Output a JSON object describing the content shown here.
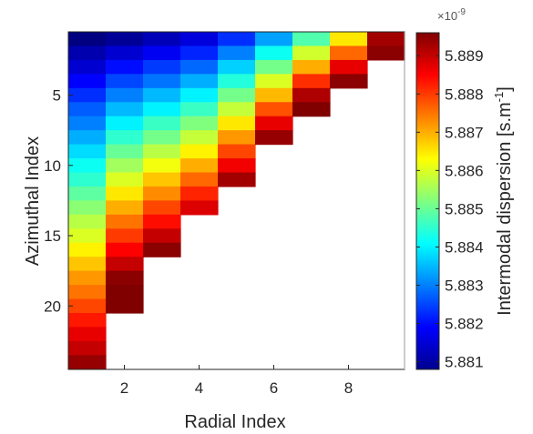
{
  "chart_data": {
    "type": "heatmap",
    "title": "",
    "xlabel": "Radial Index",
    "ylabel": "Azimuthal Index",
    "x_range": [
      1,
      9
    ],
    "y_range": [
      1,
      24
    ],
    "y_direction": "reversed",
    "x_ticks": [
      "2",
      "4",
      "6",
      "8"
    ],
    "y_ticks": [
      "5",
      "10",
      "15",
      "20"
    ],
    "colorbar": {
      "label_main": "Intermodal dispersion [s.m",
      "label_sup": "-1",
      "label_end": "]",
      "multiplier": "×10",
      "multiplier_exp": "-9",
      "ticks": [
        "5.881",
        "5.882",
        "5.883",
        "5.884",
        "5.885",
        "5.886",
        "5.887",
        "5.888",
        "5.889"
      ],
      "min": 5.8808,
      "max": 5.8896,
      "colormap": "jet"
    },
    "columns": [
      {
        "radial_index": 1,
        "values": [
          5.8808,
          5.8812,
          5.8815,
          5.8819,
          5.8823,
          5.8827,
          5.883,
          5.8834,
          5.8838,
          5.8842,
          5.8845,
          5.8849,
          5.8853,
          5.8857,
          5.886,
          5.8864,
          5.8868,
          5.8872,
          5.8875,
          5.8879,
          5.8883,
          5.8887,
          5.889,
          5.8894
        ]
      },
      {
        "radial_index": 2,
        "values": [
          5.881,
          5.8815,
          5.882,
          5.8825,
          5.883,
          5.8835,
          5.884,
          5.8845,
          5.885,
          5.8855,
          5.886,
          5.8865,
          5.887,
          5.8875,
          5.888,
          5.8885,
          5.889,
          5.8895,
          5.89,
          5.8905
        ]
      },
      {
        "radial_index": 3,
        "values": [
          5.8813,
          5.8818,
          5.8824,
          5.8829,
          5.8835,
          5.884,
          5.8846,
          5.8851,
          5.8857,
          5.8862,
          5.8868,
          5.8873,
          5.8879,
          5.8884,
          5.889,
          5.8895
        ]
      },
      {
        "radial_index": 4,
        "values": [
          5.8816,
          5.8822,
          5.8828,
          5.8834,
          5.884,
          5.8846,
          5.8852,
          5.8858,
          5.8864,
          5.887,
          5.8876,
          5.8882,
          5.8888
        ]
      },
      {
        "radial_index": 5,
        "values": [
          5.8823,
          5.883,
          5.8837,
          5.8844,
          5.8851,
          5.8858,
          5.8865,
          5.8872,
          5.8879,
          5.8886,
          5.8893
        ]
      },
      {
        "radial_index": 6,
        "values": [
          5.8833,
          5.8842,
          5.8851,
          5.886,
          5.8869,
          5.8878,
          5.8887,
          5.8894
        ]
      },
      {
        "radial_index": 7,
        "values": [
          5.8848,
          5.8859,
          5.887,
          5.8881,
          5.8892,
          5.8898
        ]
      },
      {
        "radial_index": 8,
        "values": [
          5.8865,
          5.8876,
          5.8887,
          5.8895
        ]
      },
      {
        "radial_index": 9,
        "values": [
          5.8893,
          5.8895
        ]
      }
    ]
  }
}
